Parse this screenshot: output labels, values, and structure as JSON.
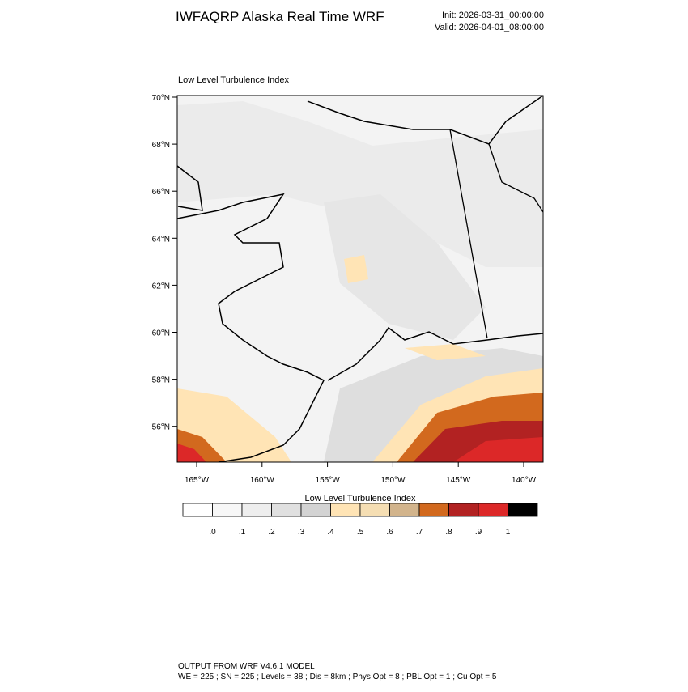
{
  "header": {
    "title": "IWFAQRP Alaska Real Time WRF",
    "init": "Init: 2026-03-31_00:00:00",
    "valid": "Valid: 2026-04-01_08:00:00"
  },
  "plot": {
    "title": "Low Level Turbulence Index",
    "lat_labels": [
      "70°N",
      "68°N",
      "66°N",
      "64°N",
      "62°N",
      "60°N",
      "58°N",
      "56°N"
    ],
    "lon_labels": [
      "165°W",
      "160°W",
      "155°W",
      "150°W",
      "145°W",
      "140°W"
    ]
  },
  "colorbar": {
    "title": "Low Level Turbulence Index",
    "colors": [
      "#ffffff",
      "#f7f7f7",
      "#eeeeee",
      "#e0e0e0",
      "#d3d3d3",
      "#ffe4b5",
      "#f5deb3",
      "#d2b48c",
      "#d2691e",
      "#b22222",
      "#dc2828",
      "#000000"
    ],
    "labels": [
      ".0",
      ".1",
      ".2",
      ".3",
      ".4",
      ".5",
      ".6",
      ".7",
      ".8",
      ".9",
      "1"
    ]
  },
  "footer": {
    "line1": "OUTPUT FROM WRF V4.6.1 MODEL",
    "line2": "WE = 225 ; SN = 225 ; Levels = 38 ; Dis = 8km ; Phys Opt = 8 ; PBL Opt = 1 ; Cu Opt = 5"
  }
}
